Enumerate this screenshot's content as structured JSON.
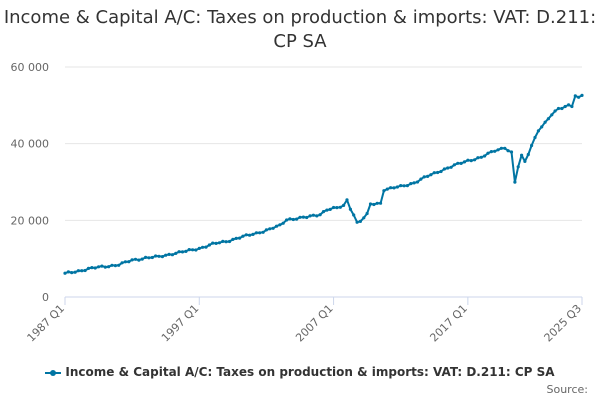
{
  "title": "Income & Capital A/C: Taxes on production & imports: VAT: D.211: CP SA",
  "credits": "Source:",
  "colors": {
    "series": "#0075a3",
    "grid": "#e6e6e6",
    "axis": "#ccd6eb",
    "text": "#666666"
  },
  "chart_data": {
    "type": "line",
    "title": "Income & Capital A/C: Taxes on production & imports: VAT: D.211: CP SA",
    "xlabel": "",
    "ylabel": "",
    "ylim": [
      0,
      60000
    ],
    "y_ticks": [
      0,
      20000,
      40000,
      60000
    ],
    "y_tick_labels": [
      "0",
      "20 000",
      "40 000",
      "60 000"
    ],
    "x_start": "1987 Q1",
    "x_end": "2025 Q3",
    "x_ticks": [
      {
        "index": 0,
        "label": "1987 Q1"
      },
      {
        "index": 40,
        "label": "1997 Q1"
      },
      {
        "index": 80,
        "label": "2007 Q1"
      },
      {
        "index": 120,
        "label": "2017 Q1"
      },
      {
        "index": 154,
        "label": "2025 Q3"
      }
    ],
    "legend_position": "bottom",
    "series": [
      {
        "name": "Income & Capital A/C: Taxes on production & imports: VAT: D.211: CP SA",
        "anchors": [
          {
            "i": 0,
            "v": 6100
          },
          {
            "i": 4,
            "v": 6800
          },
          {
            "i": 8,
            "v": 7500
          },
          {
            "i": 12,
            "v": 8000
          },
          {
            "i": 16,
            "v": 8400
          },
          {
            "i": 20,
            "v": 9600
          },
          {
            "i": 24,
            "v": 10200
          },
          {
            "i": 28,
            "v": 10500
          },
          {
            "i": 32,
            "v": 11300
          },
          {
            "i": 36,
            "v": 11900
          },
          {
            "i": 40,
            "v": 12700
          },
          {
            "i": 44,
            "v": 13800
          },
          {
            "i": 48,
            "v": 14500
          },
          {
            "i": 52,
            "v": 15500
          },
          {
            "i": 56,
            "v": 16400
          },
          {
            "i": 60,
            "v": 17400
          },
          {
            "i": 64,
            "v": 18600
          },
          {
            "i": 66,
            "v": 20200
          },
          {
            "i": 68,
            "v": 20400
          },
          {
            "i": 72,
            "v": 20800
          },
          {
            "i": 76,
            "v": 21600
          },
          {
            "i": 78,
            "v": 22800
          },
          {
            "i": 81,
            "v": 23200
          },
          {
            "i": 83,
            "v": 23800
          },
          {
            "i": 84,
            "v": 25300
          },
          {
            "i": 85,
            "v": 23200
          },
          {
            "i": 86,
            "v": 21500
          },
          {
            "i": 87,
            "v": 19400
          },
          {
            "i": 88,
            "v": 19800
          },
          {
            "i": 90,
            "v": 21500
          },
          {
            "i": 91,
            "v": 24200
          },
          {
            "i": 94,
            "v": 24500
          },
          {
            "i": 95,
            "v": 28000
          },
          {
            "i": 100,
            "v": 28800
          },
          {
            "i": 104,
            "v": 29800
          },
          {
            "i": 108,
            "v": 31500
          },
          {
            "i": 112,
            "v": 33000
          },
          {
            "i": 116,
            "v": 34300
          },
          {
            "i": 120,
            "v": 35600
          },
          {
            "i": 124,
            "v": 36400
          },
          {
            "i": 128,
            "v": 38200
          },
          {
            "i": 131,
            "v": 39000
          },
          {
            "i": 133,
            "v": 37600
          },
          {
            "i": 134,
            "v": 29900
          },
          {
            "i": 135,
            "v": 34000
          },
          {
            "i": 136,
            "v": 36800
          },
          {
            "i": 137,
            "v": 35300
          },
          {
            "i": 139,
            "v": 39600
          },
          {
            "i": 141,
            "v": 43500
          },
          {
            "i": 143,
            "v": 45300
          },
          {
            "i": 145,
            "v": 47600
          },
          {
            "i": 147,
            "v": 49200
          },
          {
            "i": 150,
            "v": 50000
          },
          {
            "i": 151,
            "v": 49800
          },
          {
            "i": 152,
            "v": 52400
          },
          {
            "i": 153,
            "v": 51800
          },
          {
            "i": 154,
            "v": 52600
          }
        ]
      }
    ]
  }
}
